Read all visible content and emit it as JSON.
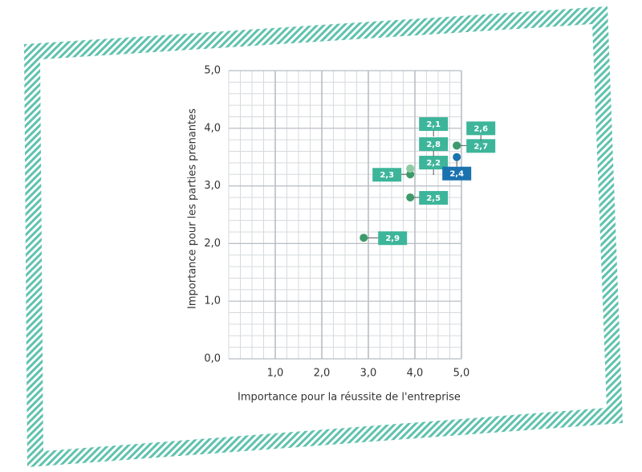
{
  "chart_data": {
    "type": "scatter",
    "x_label": "Importance pour la réussite de l'entreprise",
    "y_label": "Importance pour les parties prenantes",
    "x": [
      2.9,
      3.9,
      3.9,
      3.9,
      3.9,
      3.9,
      4.9,
      4.9,
      4.9
    ],
    "values": [
      2.1,
      2.8,
      3.2,
      3.3,
      3.3,
      3.3,
      3.7,
      3.7,
      3.5
    ],
    "point_labels": [
      "2,9",
      "2,5",
      "2,3",
      "2,2",
      "2,8",
      "2,1",
      "2,7",
      "2,6",
      "2,4"
    ],
    "colors": [
      "#3d9a6c",
      "#3d9a6c",
      "#3d9a6c",
      "#8fcca6",
      "#8fcca6",
      "#8fcca6",
      "#3d9a6c",
      "#3d9a6c",
      "#1a72ae"
    ],
    "label_colors": [
      "#3db59a",
      "#3db59a",
      "#3db59a",
      "#3db59a",
      "#3db59a",
      "#3db59a",
      "#3db59a",
      "#3db59a",
      "#1a72ae"
    ],
    "xlim": [
      0,
      5
    ],
    "ylim": [
      0,
      5
    ],
    "xticks": [
      {
        "value": 1,
        "label": "1,0"
      },
      {
        "value": 2,
        "label": "2,0"
      },
      {
        "value": 3,
        "label": "3,0"
      },
      {
        "value": 4,
        "label": "4,0"
      },
      {
        "value": 5,
        "label": "5,0"
      }
    ],
    "yticks": [
      {
        "value": 0,
        "label": "0,0"
      },
      {
        "value": 1,
        "label": "1,0"
      },
      {
        "value": 2,
        "label": "2,0"
      },
      {
        "value": 3,
        "label": "3,0"
      },
      {
        "value": 4,
        "label": "4,0"
      },
      {
        "value": 5,
        "label": "5,0"
      }
    ],
    "grid": true
  }
}
